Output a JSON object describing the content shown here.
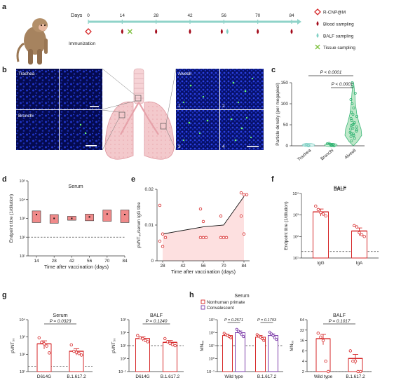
{
  "panels": {
    "a": "a",
    "b": "b",
    "c": "c",
    "d": "d",
    "e": "e",
    "f": "f",
    "g": "g",
    "h": "h"
  },
  "timeline": {
    "days_label": "Days",
    "days": [
      "0",
      "14",
      "28",
      "42",
      "56",
      "70",
      "84"
    ],
    "immunization": "Immunization",
    "legend": [
      "R-CNP@M",
      "Blood sampling",
      "BALF sampling",
      "Tissue sampling"
    ],
    "legend_icons": [
      "diamond-icon",
      "blood-drop-icon",
      "balf-drop-icon",
      "tissue-cross-icon"
    ],
    "colors": {
      "red": "#d62728",
      "teal": "#7fd0c4",
      "green": "#7bbf3a",
      "line": "#8fd3c9"
    }
  },
  "panel_b": {
    "left_labels": [
      "Trachea",
      "Bronchi"
    ],
    "right_label": "Alveoli",
    "tile_numbers": [
      "1",
      "2",
      "3",
      "4"
    ]
  },
  "chart_data": [
    {
      "panel": "c",
      "type": "violin",
      "categories": [
        "Trachea",
        "Bronchi",
        "Alveoli"
      ],
      "ylabel": "Particle density (per megapixel)",
      "ylim": [
        0,
        150
      ],
      "yticks": [
        "0",
        "50",
        "100",
        "150"
      ],
      "annotations": [
        "P < 0.0001",
        "P < 0.0001"
      ],
      "points": {
        "Trachea": [
          0,
          1,
          2,
          3,
          1,
          0,
          2
        ],
        "Bronchi": [
          0,
          2,
          4,
          6,
          3,
          1,
          5,
          2
        ],
        "Alveoli": [
          12,
          18,
          22,
          25,
          28,
          30,
          32,
          35,
          38,
          40,
          42,
          45,
          48,
          50,
          52,
          55,
          60,
          65,
          70,
          75,
          80,
          90,
          100,
          110,
          125,
          140,
          150
        ]
      }
    },
    {
      "panel": "d",
      "type": "floating-bar",
      "title": "Serum",
      "ylabel": "Endpoint titre (1/dilution)",
      "xlabel": "Time after vaccination (days)",
      "x": [
        "14",
        "28",
        "42",
        "56",
        "70",
        "84"
      ],
      "yscale": "log",
      "ylim_exp": [
        1,
        5
      ],
      "yticks": [
        "10¹",
        "10²",
        "10³",
        "10⁴",
        "10⁵"
      ],
      "min": [
        600,
        550,
        800,
        750,
        700,
        600
      ],
      "max": [
        2500,
        1600,
        1300,
        1700,
        2800,
        2800
      ],
      "mean": [
        1600,
        1000,
        1000,
        1200,
        1700,
        1600
      ],
      "dashed_line": 100
    },
    {
      "panel": "e",
      "type": "line-scatter",
      "ylabel": "pVNT₅₀/serum IgG titre",
      "xlabel": "Time after vaccination (days)",
      "x_ticks": [
        "28",
        "42",
        "56",
        "70",
        "84"
      ],
      "yticks": [
        "0",
        "0.01",
        "0.02"
      ],
      "ylim": [
        0,
        0.02
      ],
      "mean_line": {
        "x": [
          28,
          56,
          70,
          84
        ],
        "y": [
          0.0075,
          0.0095,
          0.01,
          0.018
        ]
      },
      "points": [
        {
          "x": 28,
          "y": [
            0.0155,
            0.0075,
            0.0065,
            0.0055,
            0.004
          ]
        },
        {
          "x": 56,
          "y": [
            0.0145,
            0.011,
            0.0065,
            0.0065,
            0.0065
          ]
        },
        {
          "x": 70,
          "y": [
            0.0125,
            0.0065,
            0.0065,
            0.0065
          ]
        },
        {
          "x": 84,
          "y": [
            0.019,
            0.0185,
            0.0185,
            0.0125,
            0.0075
          ]
        }
      ]
    },
    {
      "panel": "f",
      "type": "bar",
      "title": "BALF",
      "ylabel": "Endpoint titre (1/dilution)",
      "categories": [
        "IgG",
        "IgA"
      ],
      "yscale": "log",
      "ylim_exp": [
        1,
        4
      ],
      "yticks": [
        "10¹",
        "10²",
        "10³",
        "10⁴"
      ],
      "values": [
        1400,
        180
      ],
      "errors": [
        500,
        70
      ],
      "points": [
        [
          2600,
          1800,
          1300,
          1100,
          900
        ],
        [
          320,
          280,
          150,
          120,
          100
        ]
      ],
      "dashed_line": 20
    },
    {
      "panel": "g-serum",
      "type": "bar",
      "title": "Serum",
      "ylabel": "pVNT₅₀",
      "categories": [
        "D614G",
        "B.1.617.2"
      ],
      "yscale": "log",
      "ylim_exp": [
        1,
        4
      ],
      "yticks": [
        "10¹",
        "10²",
        "10³",
        "10⁴"
      ],
      "values": [
        400,
        150
      ],
      "errors": [
        200,
        60
      ],
      "points": [
        [
          900,
          500,
          400,
          300,
          120
        ],
        [
          350,
          150,
          130,
          110,
          90
        ]
      ],
      "dashed_line": 20,
      "annotations": [
        "P = 0.0323"
      ]
    },
    {
      "panel": "g-balf",
      "type": "bar",
      "title": "BALF",
      "ylabel": "pVNT₅₀",
      "categories": [
        "D614G",
        "B.1.617.2"
      ],
      "yscale": "log",
      "ylim_exp": [
        -1,
        3
      ],
      "yticks": [
        "10⁻¹",
        "10⁰",
        "10¹",
        "10²",
        "10³"
      ],
      "values": [
        35,
        18
      ],
      "errors": [
        12,
        7
      ],
      "points": [
        [
          60,
          40,
          35,
          25,
          20
        ],
        [
          35,
          20,
          15,
          12,
          10
        ]
      ],
      "dashed_line": 10,
      "annotations": [
        "P = 0.1240"
      ]
    },
    {
      "panel": "h-serum",
      "type": "grouped-bar",
      "title": "Serum",
      "ylabel": "MN₅₀",
      "categories": [
        "Wild type",
        "B.1.617.2"
      ],
      "legend": [
        "Nonhuman primate",
        "Convalescent"
      ],
      "yscale": "log",
      "ylim_exp": [
        -1,
        3
      ],
      "yticks": [
        "10⁻¹",
        "10⁰",
        "10¹",
        "10²",
        "10³"
      ],
      "series": [
        {
          "name": "Nonhuman primate",
          "values": [
            60,
            45
          ],
          "errors": [
            15,
            15
          ],
          "color": "#d62728",
          "points": [
            [
              90,
              70,
              60,
              50,
              40
            ],
            [
              70,
              55,
              45,
              35,
              25
            ]
          ]
        },
        {
          "name": "Convalescent",
          "values": [
            100,
            60
          ],
          "errors": [
            35,
            20
          ],
          "color": "#7b3aa8",
          "points": [
            [
              180,
              130,
              100,
              70,
              50
            ],
            [
              110,
              80,
              60,
              40,
              30
            ]
          ]
        }
      ],
      "dashed_line": 10,
      "annotations": [
        "P = 0.2571",
        "P = 0.1793"
      ]
    },
    {
      "panel": "h-balf",
      "type": "bar",
      "title": "BALF",
      "ylabel": "MN₅₀",
      "categories": [
        "Wild type",
        "B.1.617.2"
      ],
      "yscale": "log2",
      "ylim": [
        1,
        64
      ],
      "yticks": [
        "2",
        "4",
        "8",
        "16",
        "32",
        "64"
      ],
      "values": [
        18,
        4.8
      ],
      "errors": [
        6,
        1.5
      ],
      "points": [
        [
          26,
          20,
          16,
          4,
          2
        ],
        [
          8,
          4,
          4,
          2,
          2
        ]
      ],
      "dashed_line": 2,
      "annotations": [
        "P = 0.1017"
      ]
    }
  ]
}
